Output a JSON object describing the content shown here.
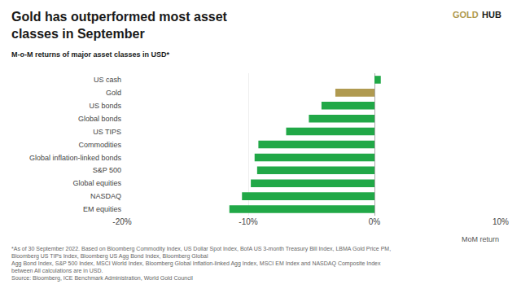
{
  "chart_data": {
    "type": "bar",
    "orientation": "horizontal",
    "title": "Gold has outperformed most asset\nclasses in September",
    "subtitle": "M-o-M returns of major asset classes in USD*",
    "xlabel": "MoM return",
    "categories": [
      "EM equities",
      "NASDAQ",
      "Global equities",
      "S&P 500",
      "Global inflation-linked bonds",
      "Commodities",
      "US TIPS",
      "Global bonds",
      "US bonds",
      "Gold",
      "US cash"
    ],
    "values": [
      -11.5,
      -10.5,
      -9.8,
      -9.3,
      -9.5,
      -9.2,
      -7.0,
      -5.2,
      -4.2,
      -3.1,
      0.5
    ],
    "colors": [
      "#21a847",
      "#21a847",
      "#21a847",
      "#21a847",
      "#21a847",
      "#21a847",
      "#21a847",
      "#21a847",
      "#21a847",
      "#b09a50",
      "#21a847"
    ],
    "xlim": [
      -20,
      10
    ],
    "xticks": [
      {
        "value": -20,
        "label": "-20%"
      },
      {
        "value": -10,
        "label": "-10%"
      },
      {
        "value": 0,
        "label": "0%"
      },
      {
        "value": 10,
        "label": "10%"
      }
    ],
    "grid": true,
    "annotations": [
      {
        "text": "GOLD",
        "color": "#b09a50"
      },
      {
        "text": "HUB",
        "color": "#1a1a1a"
      },
      {
        "text": "*As of 30 September 2022. Based on Bloomberg Commodity Index, US Dollar Spot Index, BofA US 3-month Treasury Bill Index, LBMA Gold Price PM, Bloomberg US TIPs Index, Bloomberg US Agg Bond Index, Bloomberg Global"
      },
      {
        "text": "Agg Bond Index, S&P 500 Index, MSCI World Index, Bloomberg Global Inflation-linked Agg Index, MSCI EM Index and NASDAQ Composite Index between All calculations are in USD."
      },
      {
        "text": "Source: Bloomberg, ICE Benchmark Administration, World Gold Council"
      }
    ]
  }
}
